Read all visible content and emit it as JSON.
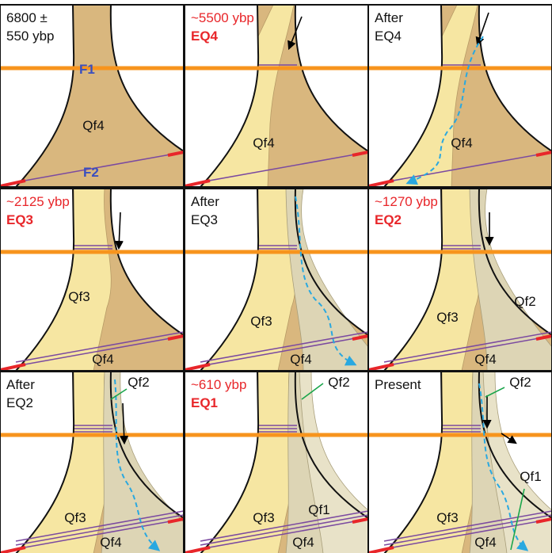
{
  "panels": [
    {
      "caption": [
        "6800 ±",
        "550 ybp"
      ],
      "faults": [
        "F1",
        "F2"
      ],
      "units": [
        "Qf4"
      ]
    },
    {
      "caption": [
        "~5500 ybp",
        "EQ4"
      ],
      "units": [
        "Qf4"
      ]
    },
    {
      "caption": [
        "After",
        "EQ4"
      ],
      "units": [
        "Qf4"
      ]
    },
    {
      "caption": [
        "~2125 ybp",
        "EQ3"
      ],
      "units": [
        "Qf3",
        "Qf4"
      ]
    },
    {
      "caption": [
        "After",
        "EQ3"
      ],
      "units": [
        "Qf3",
        "Qf4"
      ]
    },
    {
      "caption": [
        "~1270 ybp",
        "EQ2"
      ],
      "units": [
        "Qf3",
        "Qf2",
        "Qf4"
      ]
    },
    {
      "caption": [
        "After",
        "EQ2"
      ],
      "units": [
        "Qf2",
        "Qf3",
        "Qf4"
      ]
    },
    {
      "caption": [
        "~610 ybp",
        "EQ1"
      ],
      "units": [
        "Qf2",
        "Qf3",
        "Qf1",
        "Qf4"
      ]
    },
    {
      "caption": [
        "Present"
      ],
      "units": [
        "Qf2",
        "Qf1",
        "Qf3",
        "Qf4"
      ]
    }
  ]
}
